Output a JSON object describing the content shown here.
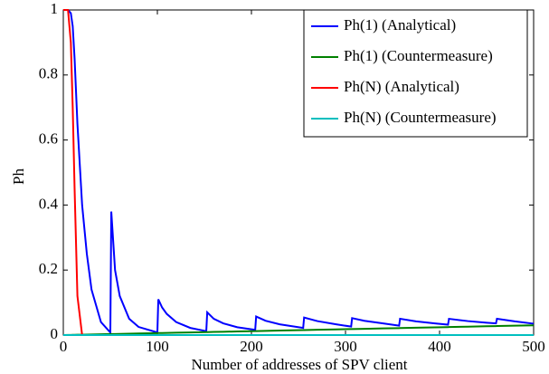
{
  "chart_data": {
    "type": "line",
    "xlabel": "Number of addresses of SPV client",
    "ylabel": "Ph",
    "x": [
      0,
      5,
      8,
      10,
      12,
      15,
      20,
      25,
      30,
      40,
      50,
      51,
      55,
      60,
      70,
      80,
      100,
      101,
      105,
      110,
      120,
      135,
      152,
      153,
      160,
      170,
      185,
      204,
      205,
      215,
      230,
      255,
      256,
      270,
      290,
      306,
      307,
      320,
      340,
      357,
      358,
      375,
      395,
      409,
      410,
      430,
      450,
      460,
      461,
      480,
      500
    ],
    "series": [
      {
        "name": "Ph(1) (Analytical)",
        "color": "#0000ff",
        "values": [
          1,
          1,
          0.99,
          0.95,
          0.85,
          0.65,
          0.4,
          0.25,
          0.14,
          0.04,
          0.008,
          0.38,
          0.2,
          0.12,
          0.05,
          0.025,
          0.008,
          0.11,
          0.085,
          0.065,
          0.04,
          0.022,
          0.012,
          0.07,
          0.05,
          0.036,
          0.024,
          0.016,
          0.057,
          0.044,
          0.033,
          0.022,
          0.054,
          0.043,
          0.033,
          0.026,
          0.052,
          0.044,
          0.036,
          0.029,
          0.05,
          0.042,
          0.036,
          0.032,
          0.05,
          0.043,
          0.038,
          0.036,
          0.05,
          0.042,
          0.035
        ]
      },
      {
        "name": "Ph(1) (Countermeasure)",
        "color": "#008000",
        "values": [
          0,
          0.0003,
          0.0005,
          0.0006,
          0.0007,
          0.0009,
          0.0012,
          0.0015,
          0.0018,
          0.0024,
          0.003,
          0.0031,
          0.0033,
          0.0036,
          0.0042,
          0.0048,
          0.006,
          0.0061,
          0.0063,
          0.0066,
          0.0072,
          0.0081,
          0.0091,
          0.0092,
          0.0096,
          0.0102,
          0.0111,
          0.0122,
          0.0123,
          0.0129,
          0.0138,
          0.0153,
          0.0154,
          0.0162,
          0.0174,
          0.0184,
          0.0184,
          0.0192,
          0.0204,
          0.0214,
          0.0215,
          0.0225,
          0.0237,
          0.0245,
          0.0246,
          0.0258,
          0.027,
          0.0276,
          0.0277,
          0.0288,
          0.03
        ]
      },
      {
        "name": "Ph(N) (Analytical)",
        "color": "#ff0000",
        "values": [
          1,
          1,
          0.9,
          0.7,
          0.45,
          0.12,
          0,
          0,
          0,
          0,
          0,
          0,
          0,
          0,
          0,
          0,
          0,
          0,
          0,
          0,
          0,
          0,
          0,
          0,
          0,
          0,
          0,
          0,
          0,
          0,
          0,
          0,
          0,
          0,
          0,
          0,
          0,
          0,
          0,
          0,
          0,
          0,
          0,
          0,
          0,
          0,
          0,
          0,
          0,
          0,
          0
        ]
      },
      {
        "name": "Ph(N) (Countermeasure)",
        "color": "#00bfbf",
        "values": [
          0,
          0,
          0,
          0,
          0,
          0,
          0,
          0,
          0,
          0,
          0,
          0,
          0,
          0,
          0,
          0,
          0,
          0,
          0,
          0,
          0,
          0,
          0,
          0,
          0,
          0,
          0,
          0,
          0,
          0,
          0,
          0,
          0,
          0,
          0,
          0,
          0,
          0,
          0,
          0,
          0,
          0,
          0,
          0,
          0,
          0,
          0,
          0,
          0,
          0,
          0
        ]
      }
    ],
    "xlim": [
      0,
      500
    ],
    "xticks": [
      0,
      100,
      200,
      300,
      400,
      500
    ],
    "ylim": [
      0,
      1
    ],
    "yticks": [
      0,
      0.2,
      0.4,
      0.6,
      0.8,
      1
    ],
    "legend": "top-right"
  }
}
